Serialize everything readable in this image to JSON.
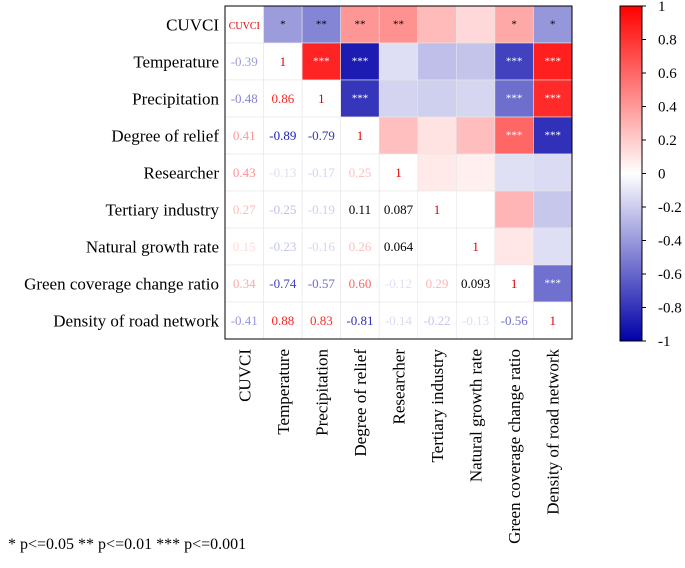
{
  "chart_data": {
    "type": "heatmap",
    "title": "",
    "variables": [
      "CUVCI",
      "Temperature",
      "Precipitation",
      "Degree of relief",
      "Researcher",
      "Tertiary industry",
      "Natural growth rate",
      "Green coverage change ratio",
      "Density of road network"
    ],
    "matrix": [
      [
        1,
        -0.39,
        -0.48,
        0.41,
        0.43,
        0.27,
        0.15,
        0.34,
        -0.41
      ],
      [
        -0.39,
        1,
        0.86,
        -0.89,
        -0.13,
        -0.25,
        -0.23,
        -0.74,
        0.88
      ],
      [
        -0.48,
        0.86,
        1,
        -0.79,
        -0.17,
        -0.19,
        -0.16,
        -0.57,
        0.83
      ],
      [
        0.41,
        -0.89,
        -0.79,
        1,
        0.25,
        0.11,
        0.26,
        0.6,
        -0.81
      ],
      [
        0.43,
        -0.13,
        -0.17,
        0.25,
        1,
        0.087,
        0.064,
        -0.12,
        -0.14
      ],
      [
        0.27,
        -0.25,
        -0.19,
        0.11,
        0.087,
        1,
        0,
        0.29,
        -0.22
      ],
      [
        0.15,
        -0.23,
        -0.16,
        0.26,
        0.064,
        0,
        1,
        0.093,
        -0.13
      ],
      [
        0.34,
        -0.74,
        -0.57,
        0.6,
        -0.12,
        0.29,
        0.093,
        1,
        -0.56
      ],
      [
        -0.41,
        0.88,
        0.83,
        -0.81,
        -0.14,
        -0.22,
        -0.13,
        -0.56,
        1
      ]
    ],
    "lower_labels": [
      [
        null,
        null,
        null,
        null,
        null,
        null,
        null,
        null,
        null
      ],
      [
        "-0.39",
        null,
        null,
        null,
        null,
        null,
        null,
        null,
        null
      ],
      [
        "-0.48",
        "0.86",
        null,
        null,
        null,
        null,
        null,
        null,
        null
      ],
      [
        "0.41",
        "-0.89",
        "-0.79",
        null,
        null,
        null,
        null,
        null,
        null
      ],
      [
        "0.43",
        "-0.13",
        "-0.17",
        "0.25",
        null,
        null,
        null,
        null,
        null
      ],
      [
        "0.27",
        "-0.25",
        "-0.19",
        "0.11",
        "0.087",
        null,
        null,
        null,
        null
      ],
      [
        "0.15",
        "-0.23",
        "-0.16",
        "0.26",
        "0.064",
        "",
        null,
        null,
        null
      ],
      [
        "0.34",
        "-0.74",
        "-0.57",
        "0.60",
        "-0.12",
        "0.29",
        "0.093",
        null,
        null
      ],
      [
        "-0.41",
        "0.88",
        "0.83",
        "-0.81",
        "-0.14",
        "-0.22",
        "-0.13",
        "-0.56",
        null
      ]
    ],
    "diagonal_labels": [
      "CUVCI",
      "1",
      "1",
      "1",
      "1",
      "1",
      "1",
      "1",
      "1"
    ],
    "significance": [
      [
        null,
        "*",
        "**",
        "**",
        "**",
        "",
        "",
        "*",
        "*"
      ],
      [
        null,
        null,
        "***",
        "***",
        "",
        "",
        "",
        "***",
        "***"
      ],
      [
        null,
        null,
        null,
        "***",
        "",
        "",
        "",
        "***",
        "***"
      ],
      [
        null,
        null,
        null,
        null,
        "",
        "",
        "",
        "***",
        "***"
      ],
      [
        null,
        null,
        null,
        null,
        null,
        "",
        "",
        "",
        ""
      ],
      [
        null,
        null,
        null,
        null,
        null,
        null,
        "",
        "",
        ""
      ],
      [
        null,
        null,
        null,
        null,
        null,
        null,
        null,
        "",
        ""
      ],
      [
        null,
        null,
        null,
        null,
        null,
        null,
        null,
        null,
        "***"
      ],
      [
        null,
        null,
        null,
        null,
        null,
        null,
        null,
        null,
        null
      ]
    ],
    "colorbar": {
      "range": [
        -1,
        1
      ],
      "ticks": [
        "1",
        "0.8",
        "0.6",
        "0.4",
        "0.2",
        "0",
        "-0.2",
        "-0.4",
        "-0.6",
        "-0.8",
        "-1"
      ],
      "colors": {
        "negative": "#0000a8",
        "zero": "#ffffff",
        "positive": "#ff0000"
      }
    },
    "legend_note": "* p<=0.05  ** p<=0.01  *** p<=0.001"
  }
}
